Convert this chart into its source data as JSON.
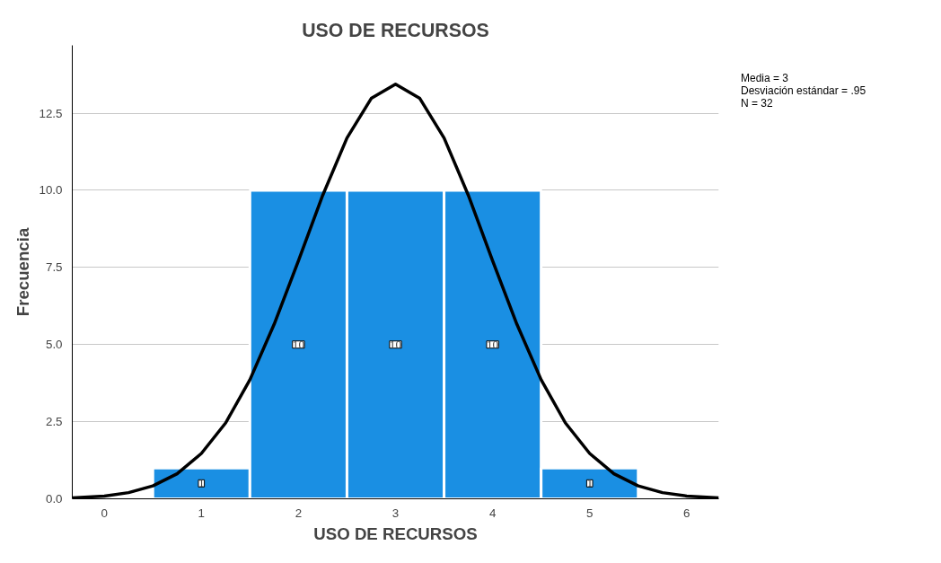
{
  "chart_data": {
    "type": "histogram",
    "title": "USO DE RECURSOS",
    "xlabel": "USO DE RECURSOS",
    "ylabel": "Frecuencia",
    "bins": [
      0.5,
      1.5,
      2.5,
      3.5,
      4.5,
      5.5
    ],
    "values": [
      1,
      10,
      10,
      10,
      1
    ],
    "color": "#1a8fe3",
    "value_labels": [
      "1",
      "10",
      "10",
      "10",
      "1"
    ],
    "series": [
      {
        "type": "line",
        "color": "#000000",
        "x": [
          -0.33,
          0,
          0.25,
          0.5,
          0.75,
          1,
          1.25,
          1.5,
          1.75,
          2,
          2.25,
          2.5,
          2.75,
          3,
          3.25,
          3.5,
          3.75,
          4,
          4.25,
          4.5,
          4.75,
          5,
          5.25,
          5.5,
          5.75,
          6,
          6.33
        ],
        "values": [
          0.03,
          0.09,
          0.2,
          0.42,
          0.81,
          1.47,
          2.46,
          3.86,
          5.66,
          7.72,
          9.84,
          11.7,
          12.98,
          13.44,
          12.98,
          11.7,
          9.84,
          7.72,
          5.66,
          3.86,
          2.46,
          1.47,
          0.81,
          0.42,
          0.2,
          0.09,
          0.03
        ]
      }
    ],
    "annotations": [
      "Media = 3",
      "Desviación estándar = .95",
      "N = 32"
    ],
    "xlim": [
      -0.33,
      6.33
    ],
    "ylim": [
      0,
      14.7
    ],
    "xticks": [
      0,
      1,
      2,
      3,
      4,
      5,
      6
    ],
    "yticks": [
      {
        "value": 0,
        "label": "0.0"
      },
      {
        "value": 2.5,
        "label": "2.5"
      },
      {
        "value": 5,
        "label": "5.0"
      },
      {
        "value": 7.5,
        "label": "7.5"
      },
      {
        "value": 10,
        "label": "10.0"
      },
      {
        "value": 12.5,
        "label": "12.5"
      }
    ],
    "grid": "y"
  }
}
